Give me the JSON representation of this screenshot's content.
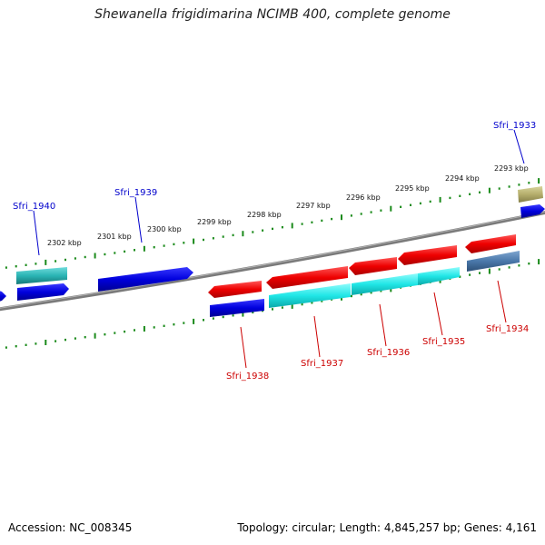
{
  "title": "Shewanella frigidimarina NCIMB 400, complete genome",
  "footer": {
    "accession": "Accession: NC_008345",
    "summary": "Topology: circular; Length: 4,845,257 bp; Genes: 4,161"
  },
  "scale": {
    "labels": [
      "2302 kbp",
      "2301 kbp",
      "2300 kbp",
      "2299 kbp",
      "2298 kbp",
      "2297 kbp",
      "2296 kbp",
      "2295 kbp",
      "2294 kbp",
      "2293 kbp"
    ]
  },
  "genes": [
    {
      "name": "Sfri_1940",
      "label_color": "#0000cc"
    },
    {
      "name": "Sfri_1939",
      "label_color": "#0000cc"
    },
    {
      "name": "Sfri_1933",
      "label_color": "#0000cc"
    },
    {
      "name": "Sfri_1938",
      "label_color": "#cc0000"
    },
    {
      "name": "Sfri_1937",
      "label_color": "#cc0000"
    },
    {
      "name": "Sfri_1936",
      "label_color": "#cc0000"
    },
    {
      "name": "Sfri_1935",
      "label_color": "#cc0000"
    },
    {
      "name": "Sfri_1934",
      "label_color": "#cc0000"
    }
  ],
  "colors": {
    "backbone": "#808080",
    "tick": "#1a8a1a",
    "forward_blue": "#1010e0",
    "reverse_red": "#ee1111",
    "cyan": "#22e0e0",
    "teal": "#30b8b8",
    "steel": "#4a7eb0",
    "olive": "#b8b070"
  }
}
